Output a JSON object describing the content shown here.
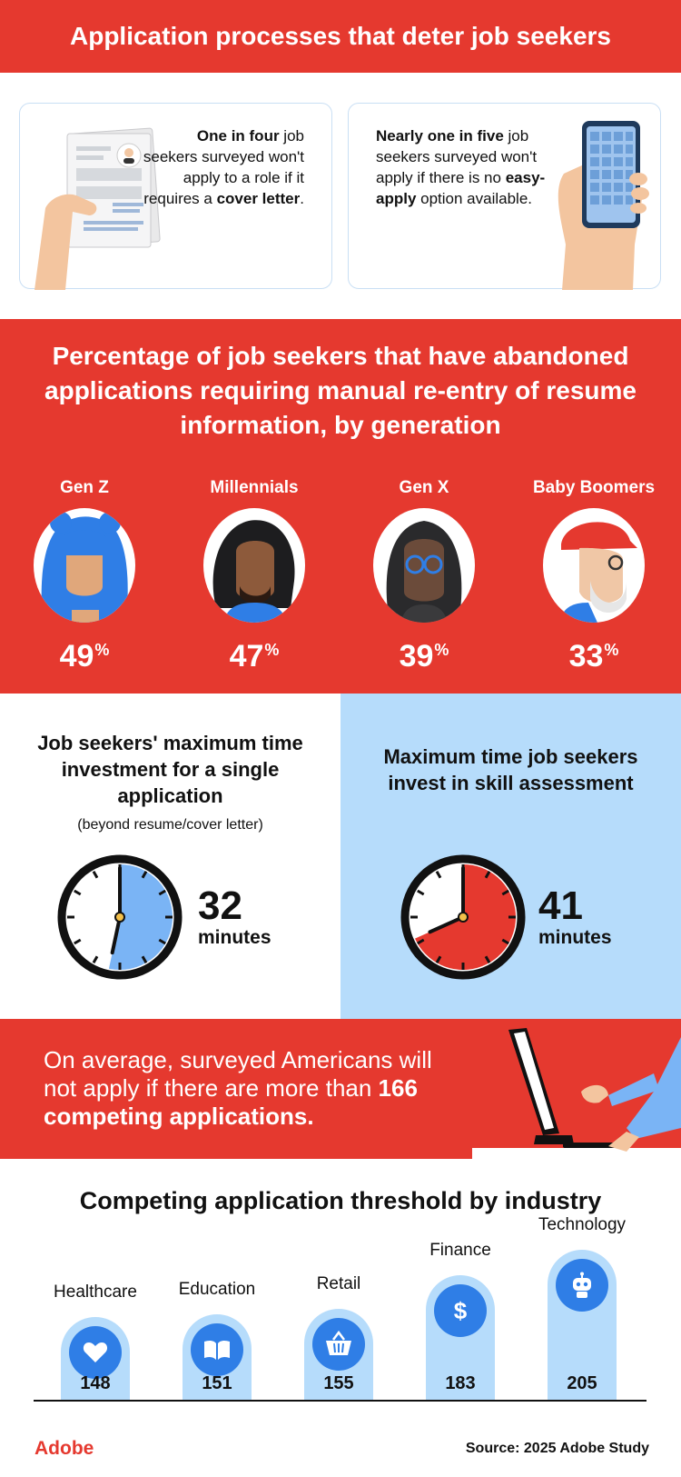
{
  "header": {
    "title": "Application processes that deter job seekers"
  },
  "cards": {
    "left": {
      "bold": "One in four",
      "rest_1": " job seekers surveyed won't apply to a role if it requires a ",
      "bold_2": "cover letter",
      "end": "."
    },
    "right": {
      "bold": "Nearly one in five",
      "rest_1": " job seekers surveyed won't apply if there is no ",
      "bold_2": "easy-apply",
      "end": " option available."
    }
  },
  "generation": {
    "heading": "Percentage of job seekers that have abandoned applications requiring manual re-entry of resume information, by generation",
    "items": [
      {
        "label": "Gen Z",
        "value": "49",
        "unit": "%",
        "number": 49
      },
      {
        "label": "Millennials",
        "value": "47",
        "unit": "%",
        "number": 47
      },
      {
        "label": "Gen X",
        "value": "39",
        "unit": "%",
        "number": 39
      },
      {
        "label": "Baby Boomers",
        "value": "33",
        "unit": "%",
        "number": 33
      }
    ]
  },
  "time": {
    "left": {
      "title": "Job seekers' maximum time investment for a single application",
      "note": "(beyond resume/cover letter)",
      "value": "32",
      "unit": "minutes",
      "minutes": 32,
      "fill_color": "#7ab4f5"
    },
    "right": {
      "title": "Maximum time job seekers invest in skill assessment",
      "value": "41",
      "unit": "minutes",
      "minutes": 41,
      "fill_color": "#e5392f"
    }
  },
  "compete": {
    "line_1": "On average, surveyed Americans will not apply if there are more than ",
    "bold": "166 competing applications",
    "end": "."
  },
  "industry": {
    "title": "Competing application threshold by industry",
    "items": [
      {
        "label": "Healthcare",
        "value": "148",
        "number": 148,
        "icon": "heart-icon"
      },
      {
        "label": "Education",
        "value": "151",
        "number": 151,
        "icon": "book-icon"
      },
      {
        "label": "Retail",
        "value": "155",
        "number": 155,
        "icon": "basket-icon"
      },
      {
        "label": "Finance",
        "value": "183",
        "number": 183,
        "icon": "dollar-icon"
      },
      {
        "label": "Technology",
        "value": "205",
        "number": 205,
        "icon": "robot-icon"
      }
    ]
  },
  "footer": {
    "brand": "Adobe",
    "source": "Source: 2025 Adobe Study"
  },
  "colors": {
    "accent": "#e5392f",
    "light_blue": "#b6dcfb",
    "blue": "#2f7ee6"
  }
}
